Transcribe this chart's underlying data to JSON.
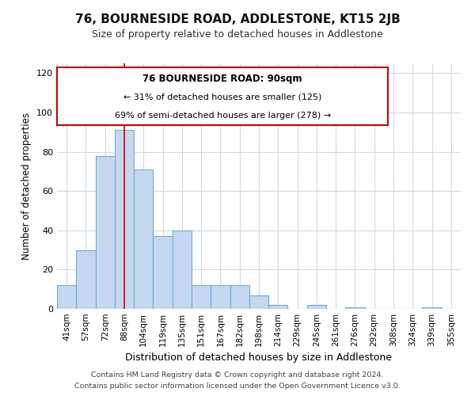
{
  "title": "76, BOURNESIDE ROAD, ADDLESTONE, KT15 2JB",
  "subtitle": "Size of property relative to detached houses in Addlestone",
  "xlabel": "Distribution of detached houses by size in Addlestone",
  "ylabel": "Number of detached properties",
  "footer_line1": "Contains HM Land Registry data © Crown copyright and database right 2024.",
  "footer_line2": "Contains public sector information licensed under the Open Government Licence v3.0.",
  "categories": [
    "41sqm",
    "57sqm",
    "72sqm",
    "88sqm",
    "104sqm",
    "119sqm",
    "135sqm",
    "151sqm",
    "167sqm",
    "182sqm",
    "198sqm",
    "214sqm",
    "229sqm",
    "245sqm",
    "261sqm",
    "276sqm",
    "292sqm",
    "308sqm",
    "324sqm",
    "339sqm",
    "355sqm"
  ],
  "values": [
    12,
    30,
    78,
    91,
    71,
    37,
    40,
    12,
    12,
    12,
    7,
    2,
    0,
    2,
    0,
    1,
    0,
    0,
    0,
    1,
    0
  ],
  "bar_color": "#c5d8f0",
  "bar_edge_color": "#6aaed6",
  "property_bar_index": 3,
  "annotation_title": "76 BOURNESIDE ROAD: 90sqm",
  "annotation_line1": "← 31% of detached houses are smaller (125)",
  "annotation_line2": "69% of semi-detached houses are larger (278) →",
  "annotation_box_edge_color": "#cc0000",
  "vline_color": "#cc0000",
  "ylim": [
    0,
    125
  ],
  "yticks": [
    0,
    20,
    40,
    60,
    80,
    100,
    120
  ],
  "background_color": "#ffffff",
  "grid_color": "#d0d8e8",
  "title_fontsize": 11,
  "subtitle_fontsize": 9,
  "ylabel_fontsize": 8.5,
  "xlabel_fontsize": 9,
  "tick_fontsize": 8,
  "xtick_fontsize": 7.5,
  "footer_fontsize": 6.8
}
